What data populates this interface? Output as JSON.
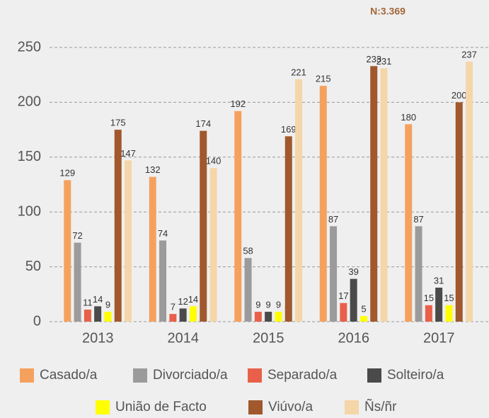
{
  "chart_data": {
    "type": "bar",
    "title": "N:3.369",
    "categories": [
      "2013",
      "2014",
      "2015",
      "2016",
      "2017"
    ],
    "series": [
      {
        "name": "Casado/a",
        "color": "#f5a15e",
        "values": [
          129,
          132,
          192,
          215,
          180
        ]
      },
      {
        "name": "Divorciado/a",
        "color": "#9b9b9b",
        "values": [
          72,
          74,
          58,
          87,
          87
        ]
      },
      {
        "name": "Separado/a",
        "color": "#e8604a",
        "values": [
          11,
          7,
          9,
          17,
          15
        ]
      },
      {
        "name": "Solteiro/a",
        "color": "#4a4a4a",
        "values": [
          14,
          12,
          9,
          39,
          31
        ]
      },
      {
        "name": "União de Facto",
        "color": "#ffff00",
        "values": [
          9,
          14,
          9,
          5,
          15
        ]
      },
      {
        "name": "Viúvo/a",
        "color": "#a0582c",
        "values": [
          175,
          174,
          169,
          233,
          200
        ]
      },
      {
        "name": "Ñs/ñr",
        "color": "#f5d6a8",
        "values": [
          147,
          140,
          221,
          231,
          237
        ]
      }
    ],
    "ylim": [
      0,
      250
    ],
    "yticks": [
      0,
      50,
      100,
      150,
      200,
      250
    ],
    "grid": true
  }
}
